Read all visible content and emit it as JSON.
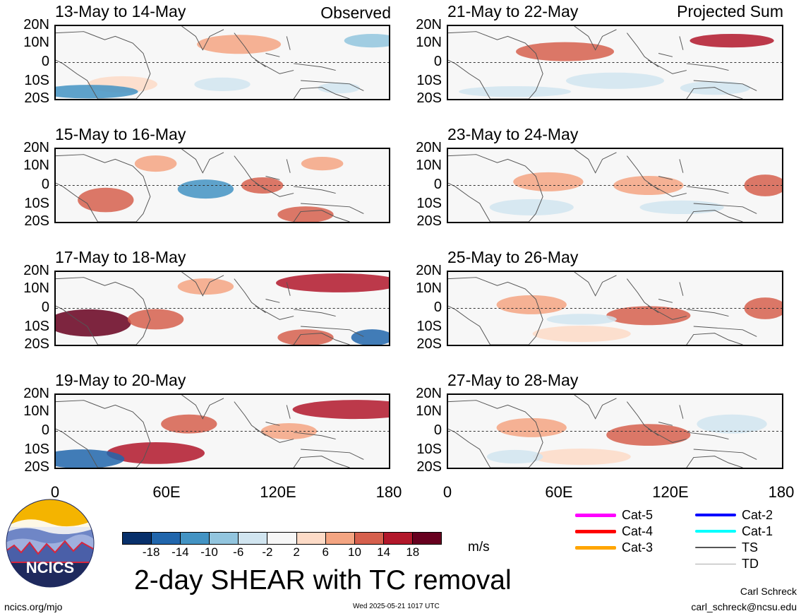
{
  "panels": {
    "left": [
      {
        "title": "13-May to 14-May",
        "tag": "Observed"
      },
      {
        "title": "15-May to 16-May",
        "tag": ""
      },
      {
        "title": "17-May to 18-May",
        "tag": ""
      },
      {
        "title": "19-May to 20-May",
        "tag": ""
      }
    ],
    "right": [
      {
        "title": "21-May to 22-May",
        "tag": "Projected Sum"
      },
      {
        "title": "23-May to 24-May",
        "tag": ""
      },
      {
        "title": "25-May to 26-May",
        "tag": ""
      },
      {
        "title": "27-May to 28-May",
        "tag": ""
      }
    ]
  },
  "lat_labels": [
    "20N",
    "10N",
    "0",
    "10S",
    "20S"
  ],
  "lon_labels": [
    "0",
    "60E",
    "120E",
    "180"
  ],
  "colorbar": {
    "colors": [
      "#08306b",
      "#2166ac",
      "#4393c3",
      "#92c5de",
      "#d1e5f0",
      "#f7f7f7",
      "#fddbc7",
      "#f4a582",
      "#d6604d",
      "#b2182b",
      "#67001f"
    ],
    "ticks": [
      "-18",
      "-14",
      "-10",
      "-6",
      "-2",
      "2",
      "6",
      "10",
      "14",
      "18"
    ],
    "unit": "m/s"
  },
  "main_title": "2-day SHEAR with TC removal",
  "legend": [
    {
      "label": "Cat-5",
      "color": "#ff00ff",
      "icon": "thick-line"
    },
    {
      "label": "Cat-4",
      "color": "#ff0000",
      "icon": "thick-line"
    },
    {
      "label": "Cat-3",
      "color": "#ffa500",
      "icon": "thick-line"
    },
    {
      "label": "Cat-2",
      "color": "#0000ff",
      "icon": "thick-line"
    },
    {
      "label": "Cat-1",
      "color": "#00ffff",
      "icon": "thick-line"
    },
    {
      "label": "TS",
      "color": "#555555",
      "icon": "medium-line"
    },
    {
      "label": "TD",
      "color": "#aaaaaa",
      "icon": "thin-line"
    }
  ],
  "logo": {
    "text": "NCICS",
    "icon": "mountains-logo"
  },
  "footer": {
    "website": "ncics.org/mjo",
    "timestamp": "Wed 2025-05-21 1017 UTC",
    "author": "Carl Schreck",
    "email": "carl_schreck@ncsu.edu"
  }
}
